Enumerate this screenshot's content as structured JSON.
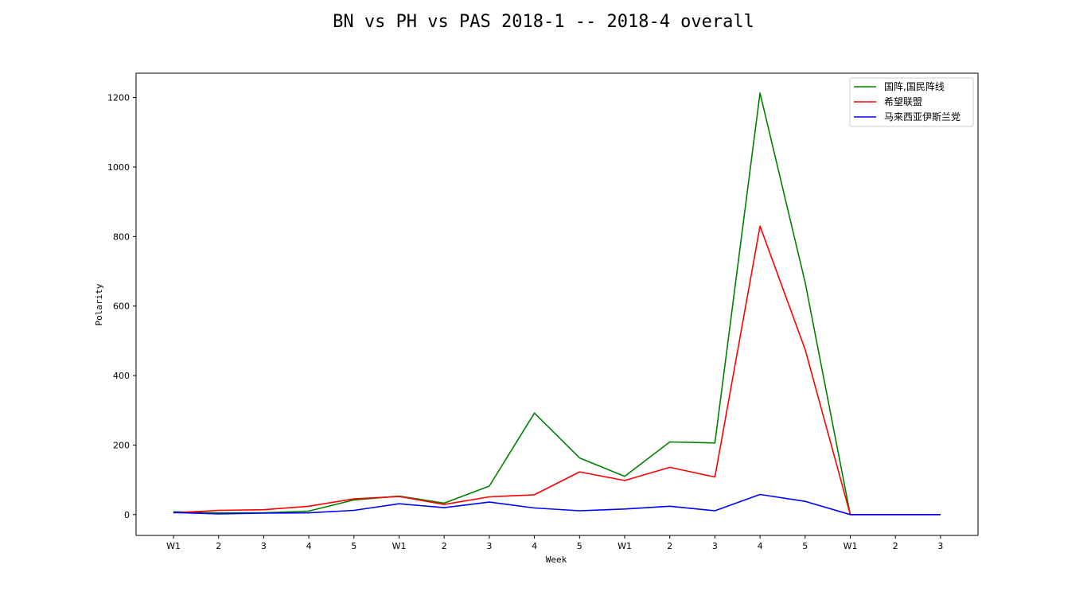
{
  "chart_data": {
    "type": "line",
    "title": "BN vs PH vs PAS 2018-1 -- 2018-4 overall",
    "xlabel": "Week",
    "ylabel": "Polarity",
    "categories": [
      "W1",
      "2",
      "3",
      "4",
      "5",
      "W1",
      "2",
      "3",
      "4",
      "5",
      "W1",
      "2",
      "3",
      "4",
      "5",
      "W1",
      "2",
      "3"
    ],
    "ylim": [
      -60,
      1270
    ],
    "yticks": [
      0,
      200,
      400,
      600,
      800,
      1000,
      1200
    ],
    "grid": false,
    "legend_position": "top-right",
    "series": [
      {
        "name": "国阵,国民阵线",
        "color": "#008000",
        "values": [
          8,
          5,
          5,
          10,
          42,
          53,
          33,
          82,
          292,
          163,
          110,
          209,
          206,
          1213,
          668,
          0,
          0,
          0
        ]
      },
      {
        "name": "希望联盟",
        "color": "#ff0000",
        "values": [
          5,
          12,
          14,
          24,
          45,
          52,
          29,
          51,
          57,
          123,
          98,
          136,
          108,
          830,
          475,
          0,
          0,
          0
        ]
      },
      {
        "name": "马来西亚伊斯兰党",
        "color": "#0000ff",
        "values": [
          6,
          2,
          4,
          5,
          12,
          31,
          20,
          36,
          19,
          11,
          16,
          24,
          11,
          58,
          38,
          0,
          0,
          0
        ]
      }
    ]
  }
}
